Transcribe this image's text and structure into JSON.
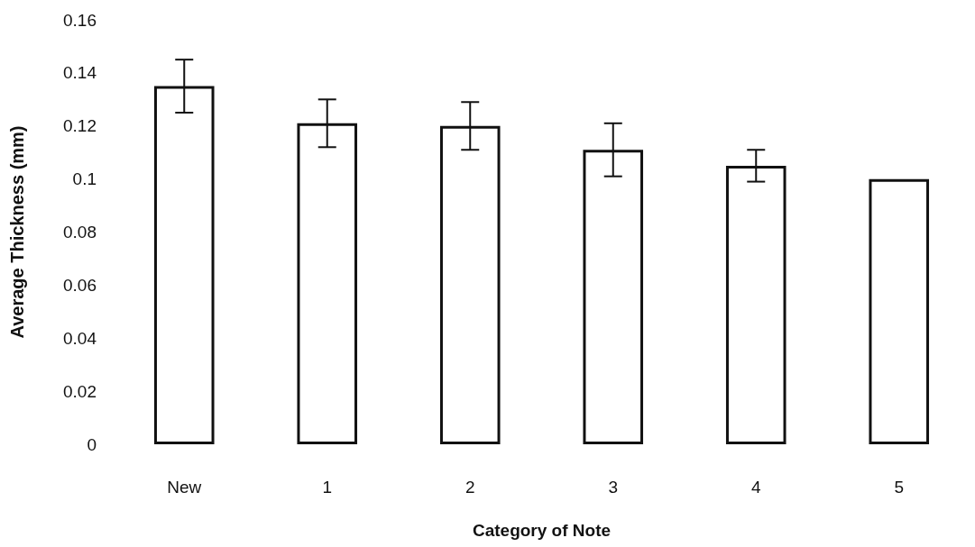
{
  "chart_data": {
    "type": "bar",
    "xlabel": "Category of Note",
    "ylabel": "Average Thickness (mm)",
    "categories": [
      "New",
      "1",
      "2",
      "3",
      "4",
      "5"
    ],
    "values": [
      0.135,
      0.121,
      0.12,
      0.111,
      0.105,
      0.1
    ],
    "errors": [
      0.01,
      0.009,
      0.009,
      0.01,
      0.006,
      null
    ],
    "color": "#ffffff",
    "ylim": [
      0,
      0.16
    ],
    "yticks": [
      0,
      0.02,
      0.04,
      0.06,
      0.08,
      0.1,
      0.12,
      0.14,
      0.16
    ],
    "grid": false
  }
}
